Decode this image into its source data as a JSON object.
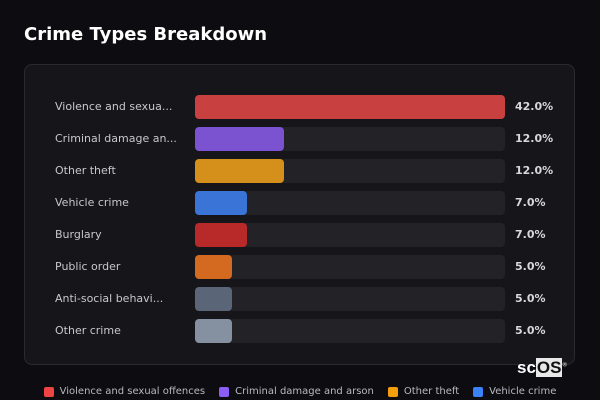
{
  "title": "Crime Types Breakdown",
  "chart_data": {
    "type": "bar",
    "orientation": "horizontal",
    "title": "Crime Types Breakdown",
    "xlim": [
      0,
      42
    ],
    "categories": [
      "Violence and sexua...",
      "Criminal damage an...",
      "Other theft",
      "Vehicle crime",
      "Burglary",
      "Public order",
      "Anti-social behavi...",
      "Other crime"
    ],
    "values": [
      42.0,
      12.0,
      12.0,
      7.0,
      7.0,
      5.0,
      5.0,
      5.0
    ],
    "value_labels": [
      "42.0%",
      "12.0%",
      "12.0%",
      "7.0%",
      "7.0%",
      "5.0%",
      "5.0%",
      "5.0%"
    ],
    "colors": [
      "#c94040",
      "#7b52d0",
      "#d4901a",
      "#3a74d6",
      "#b82a2a",
      "#d46a20",
      "#5a6678",
      "#8590a0"
    ],
    "legend": [
      {
        "label": "Violence and sexual offences",
        "color": "#ef4444"
      },
      {
        "label": "Criminal damage and arson",
        "color": "#8b5cf6"
      },
      {
        "label": "Other theft",
        "color": "#f59e0b"
      },
      {
        "label": "Vehicle crime",
        "color": "#3b82f6"
      }
    ],
    "legend_position": "bottom"
  },
  "logo": "scOS"
}
